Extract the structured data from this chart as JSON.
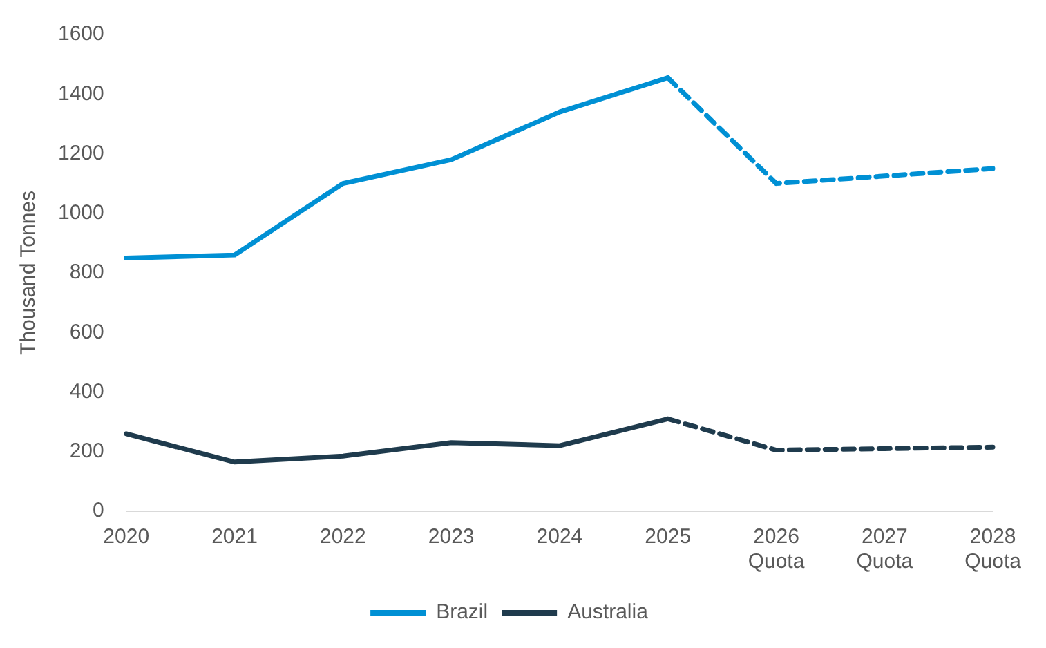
{
  "chart_data": {
    "type": "line",
    "ylabel": "Thousand Tonnes",
    "categories": [
      "2020",
      "2021",
      "2022",
      "2023",
      "2024",
      "2025",
      "2026 Quota",
      "2027 Quota",
      "2028 Quota"
    ],
    "series": [
      {
        "name": "Brazil",
        "color": "#0090d4",
        "values": [
          850,
          860,
          1100,
          1180,
          1340,
          1455,
          null,
          null,
          null
        ]
      },
      {
        "name": "Australia",
        "color": "#1f3b4d",
        "values": [
          260,
          165,
          185,
          230,
          220,
          310,
          null,
          null,
          null
        ]
      },
      {
        "color": "#0090d4",
        "line_style": "dashed",
        "values": [
          null,
          null,
          null,
          null,
          null,
          1455,
          1100,
          1125,
          1150
        ]
      },
      {
        "color": "#1f3b4d",
        "line_style": "dashed",
        "values": [
          null,
          null,
          null,
          null,
          null,
          310,
          205,
          210,
          215
        ]
      }
    ],
    "ylim": [
      0,
      1600
    ],
    "yticks": [
      0,
      200,
      400,
      600,
      800,
      1000,
      1200,
      1400,
      1600
    ],
    "grid": false,
    "legend": "bottom",
    "marker": "none",
    "line_style": "solid"
  }
}
